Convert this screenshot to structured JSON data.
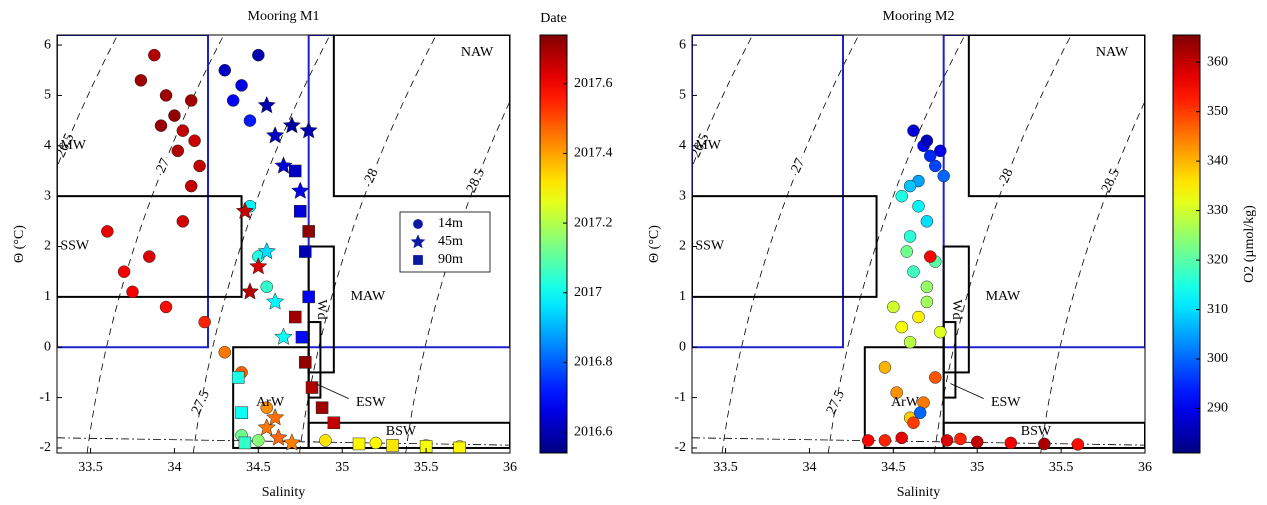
{
  "chart_data": [
    {
      "type": "scatter",
      "title": "Mooring M1",
      "xlabel": "Salinity",
      "ylabel": "Θ (°C)",
      "xlim": [
        33.3,
        36
      ],
      "ylim": [
        -2.1,
        6.2
      ],
      "xticks": [
        33.5,
        34,
        34.5,
        35,
        35.5,
        36
      ],
      "yticks": [
        -2,
        -1,
        0,
        1,
        2,
        3,
        4,
        5,
        6
      ],
      "colorbar_label": "Date",
      "clim": [
        2016.54,
        2017.74
      ],
      "cticks": [
        2016.6,
        2016.8,
        2017,
        2017.2,
        2017.4,
        2017.6
      ],
      "colormap": "jet",
      "legend": true,
      "contours": [
        26.5,
        27,
        27.5,
        28,
        28.5
      ],
      "regions": [
        {
          "label": "MW",
          "color": "#1f1fcc",
          "box": [
            33.3,
            34.2,
            0,
            6.2
          ]
        },
        {
          "label": "MAW",
          "color": "#1f1fcc",
          "box": [
            34.8,
            36,
            0,
            6.2
          ]
        },
        {
          "label": "NAW",
          "color": "#000000",
          "box": [
            34.95,
            36,
            3,
            6.2
          ]
        },
        {
          "label": "SSW",
          "color": "#000000",
          "box": [
            33.3,
            34.4,
            1,
            3
          ]
        },
        {
          "label": "Wd",
          "color": "#000000",
          "box": [
            34.8,
            34.95,
            -0.5,
            2
          ]
        },
        {
          "color": "#000000",
          "box": [
            34.8,
            34.87,
            -1,
            0.5
          ]
        },
        {
          "label": "ArW",
          "color": "#000000",
          "box": [
            34.35,
            34.8,
            -2,
            0
          ]
        },
        {
          "label": "BSW",
          "color": "#000000",
          "box": [
            34.8,
            36,
            -2,
            -1.5
          ]
        },
        {
          "label": "ESW",
          "color": "#000000"
        }
      ],
      "series": [
        {
          "name": "14m",
          "marker": "circle",
          "x": [
            33.88,
            33.95,
            34.0,
            34.05,
            34.1,
            34.12,
            33.92,
            34.02,
            34.15,
            33.8,
            33.6,
            33.7,
            33.85,
            33.95,
            34.05,
            33.75,
            34.1,
            34.18,
            34.3,
            34.35,
            34.4,
            34.45,
            34.5,
            34.45,
            34.5,
            34.55,
            34.3,
            34.4,
            34.55,
            34.9,
            35.2,
            35.5,
            35.7,
            34.4,
            34.5
          ],
          "values": [
            5.8,
            5.0,
            4.6,
            4.3,
            4.9,
            4.1,
            4.4,
            3.9,
            3.6,
            5.3,
            2.3,
            1.5,
            1.8,
            0.8,
            2.5,
            1.1,
            3.2,
            0.5,
            5.5,
            4.9,
            5.2,
            4.5,
            5.8,
            2.8,
            1.8,
            1.2,
            -0.1,
            -0.5,
            -1.2,
            -1.85,
            -1.9,
            -1.95,
            -1.97,
            -1.75,
            -1.85
          ],
          "c": [
            2017.68,
            2017.7,
            2017.72,
            2017.66,
            2017.7,
            2017.65,
            2017.71,
            2017.68,
            2017.66,
            2017.7,
            2017.62,
            2017.6,
            2017.63,
            2017.58,
            2017.64,
            2017.6,
            2017.66,
            2017.55,
            2016.62,
            2016.68,
            2016.65,
            2016.72,
            2016.6,
            2016.98,
            2017.02,
            2017.05,
            2017.45,
            2017.48,
            2017.42,
            2017.32,
            2017.3,
            2017.28,
            2017.3,
            2017.12,
            2017.15
          ]
        },
        {
          "name": "45m",
          "marker": "star",
          "x": [
            34.55,
            34.6,
            34.65,
            34.7,
            34.75,
            34.8,
            34.55,
            34.6,
            34.65,
            34.42,
            34.5,
            34.45,
            34.55,
            34.62,
            34.7,
            34.6
          ],
          "values": [
            4.8,
            4.2,
            3.6,
            4.4,
            3.1,
            4.3,
            1.9,
            0.9,
            0.2,
            2.7,
            1.6,
            1.1,
            -1.6,
            -1.8,
            -1.9,
            -1.4
          ],
          "c": [
            2016.6,
            2016.62,
            2016.64,
            2016.58,
            2016.66,
            2016.6,
            2016.95,
            2016.98,
            2017.0,
            2017.66,
            2017.64,
            2017.68,
            2017.45,
            2017.47,
            2017.44,
            2017.46
          ]
        },
        {
          "name": "90m",
          "marker": "square",
          "x": [
            34.72,
            34.75,
            34.78,
            34.8,
            34.76,
            34.72,
            34.78,
            34.82,
            34.88,
            34.95,
            34.38,
            34.4,
            34.42,
            35.1,
            35.3,
            35.5,
            35.7,
            34.8
          ],
          "values": [
            3.5,
            2.7,
            1.9,
            1.0,
            0.2,
            0.6,
            -0.3,
            -0.8,
            -1.2,
            -1.5,
            -0.6,
            -1.3,
            -1.9,
            -1.92,
            -1.95,
            -1.97,
            -2.0,
            2.3
          ],
          "c": [
            2016.62,
            2016.65,
            2016.6,
            2016.68,
            2016.7,
            2017.7,
            2017.72,
            2017.68,
            2017.7,
            2017.66,
            2017.02,
            2017.0,
            2017.05,
            2017.3,
            2017.32,
            2017.28,
            2017.3,
            2017.72
          ]
        }
      ]
    },
    {
      "type": "scatter",
      "title": "Mooring M2",
      "xlabel": "Salinity",
      "ylabel": "Θ (°C)",
      "xlim": [
        33.3,
        36
      ],
      "ylim": [
        -2.1,
        6.2
      ],
      "xticks": [
        33.5,
        34,
        34.5,
        35,
        35.5,
        36
      ],
      "yticks": [
        -2,
        -1,
        0,
        1,
        2,
        3,
        4,
        5,
        6
      ],
      "colorbar_label": "O2 (µmol/kg)",
      "clim": [
        281,
        365.5
      ],
      "cticks": [
        290,
        300,
        310,
        320,
        330,
        340,
        350,
        360
      ],
      "colormap": "jet",
      "legend": false,
      "contours": [
        26.5,
        27,
        27.5,
        28,
        28.5
      ],
      "regions": [
        {
          "label": "MW",
          "color": "#1f1fcc",
          "box": [
            33.3,
            34.2,
            0,
            6.2
          ]
        },
        {
          "label": "MAW",
          "color": "#1f1fcc",
          "box": [
            34.8,
            36,
            0,
            6.2
          ]
        },
        {
          "label": "NAW",
          "color": "#000000",
          "box": [
            34.95,
            36,
            3,
            6.2
          ]
        },
        {
          "label": "SSW",
          "color": "#000000",
          "box": [
            33.3,
            34.4,
            1,
            3
          ]
        },
        {
          "label": "Wd",
          "color": "#000000",
          "box": [
            34.8,
            34.95,
            -0.5,
            2
          ]
        },
        {
          "color": "#000000",
          "box": [
            34.8,
            34.87,
            -1,
            0.5
          ]
        },
        {
          "label": "ArW",
          "color": "#000000",
          "box": [
            34.33,
            34.8,
            -2,
            0
          ]
        },
        {
          "label": "BSW",
          "color": "#000000",
          "box": [
            34.8,
            36,
            -2,
            -1.5
          ]
        },
        {
          "label": "ESW",
          "color": "#000000"
        }
      ],
      "series": [
        {
          "marker": "circle",
          "x": [
            34.62,
            34.68,
            34.72,
            34.78,
            34.8,
            34.75,
            34.7,
            34.65,
            34.6,
            34.65,
            34.7,
            34.55,
            34.58,
            34.62,
            34.7,
            34.75,
            34.6,
            34.5,
            34.55,
            34.6,
            34.65,
            34.7,
            34.78,
            34.45,
            34.52,
            34.6,
            34.68,
            34.75,
            34.82,
            35.0,
            35.2,
            35.4,
            35.6,
            34.9,
            34.35,
            34.45,
            34.55,
            34.62,
            34.72,
            34.66
          ],
          "values": [
            4.3,
            4.0,
            3.8,
            3.9,
            3.4,
            3.6,
            4.1,
            3.3,
            3.2,
            2.8,
            2.5,
            3.0,
            1.9,
            1.5,
            1.2,
            1.7,
            2.2,
            0.8,
            0.4,
            0.1,
            0.6,
            0.9,
            0.3,
            -0.4,
            -0.9,
            -1.4,
            -1.1,
            -0.6,
            -1.85,
            -1.88,
            -1.9,
            -1.92,
            -1.93,
            -1.82,
            -1.85,
            -1.85,
            -1.8,
            -1.5,
            1.8,
            -1.3
          ],
          "c": [
            288,
            292,
            295,
            290,
            300,
            297,
            286,
            305,
            308,
            312,
            310,
            315,
            322,
            318,
            325,
            320,
            316,
            330,
            333,
            328,
            335,
            326,
            331,
            340,
            343,
            338,
            345,
            348,
            358,
            360,
            356,
            362,
            354,
            352,
            355,
            352,
            357,
            350,
            355,
            300
          ]
        }
      ]
    }
  ]
}
